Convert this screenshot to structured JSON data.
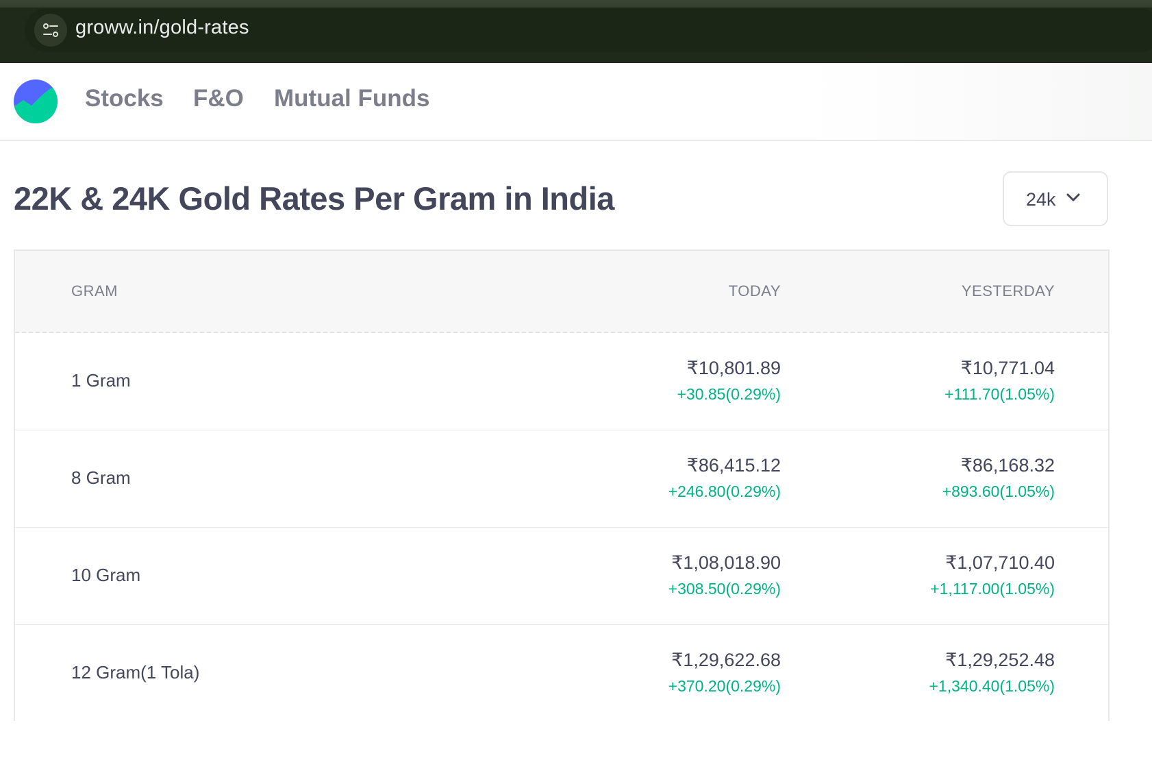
{
  "browser": {
    "url": "groww.in/gold-rates"
  },
  "nav": {
    "items": [
      {
        "label": "Stocks"
      },
      {
        "label": "F&O"
      },
      {
        "label": "Mutual Funds"
      }
    ]
  },
  "main": {
    "title": "22K & 24K Gold Rates Per Gram in India",
    "karat_select": {
      "value": "24k"
    }
  },
  "table": {
    "headers": {
      "gram": "GRAM",
      "today": "TODAY",
      "yesterday": "YESTERDAY"
    },
    "rows": [
      {
        "gram": "1 Gram",
        "today": "₹10,801.89",
        "today_change": "+30.85(0.29%)",
        "yesterday": "₹10,771.04",
        "yesterday_change": "+111.70(1.05%)"
      },
      {
        "gram": "8 Gram",
        "today": "₹86,415.12",
        "today_change": "+246.80(0.29%)",
        "yesterday": "₹86,168.32",
        "yesterday_change": "+893.60(1.05%)"
      },
      {
        "gram": "10 Gram",
        "today": "₹1,08,018.90",
        "today_change": "+308.50(0.29%)",
        "yesterday": "₹1,07,710.40",
        "yesterday_change": "+1,117.00(1.05%)"
      },
      {
        "gram": "12 Gram(1 Tola)",
        "today": "₹1,29,622.68",
        "today_change": "+370.20(0.29%)",
        "yesterday": "₹1,29,252.48",
        "yesterday_change": "+1,340.40(1.05%)"
      }
    ]
  },
  "colors": {
    "positive": "#00b386",
    "text_primary": "#44475b",
    "text_secondary": "#7c7e8c"
  },
  "icons": {
    "site_info": "site-settings-icon",
    "logo": "groww-logo",
    "dropdown": "chevron-down-icon"
  }
}
